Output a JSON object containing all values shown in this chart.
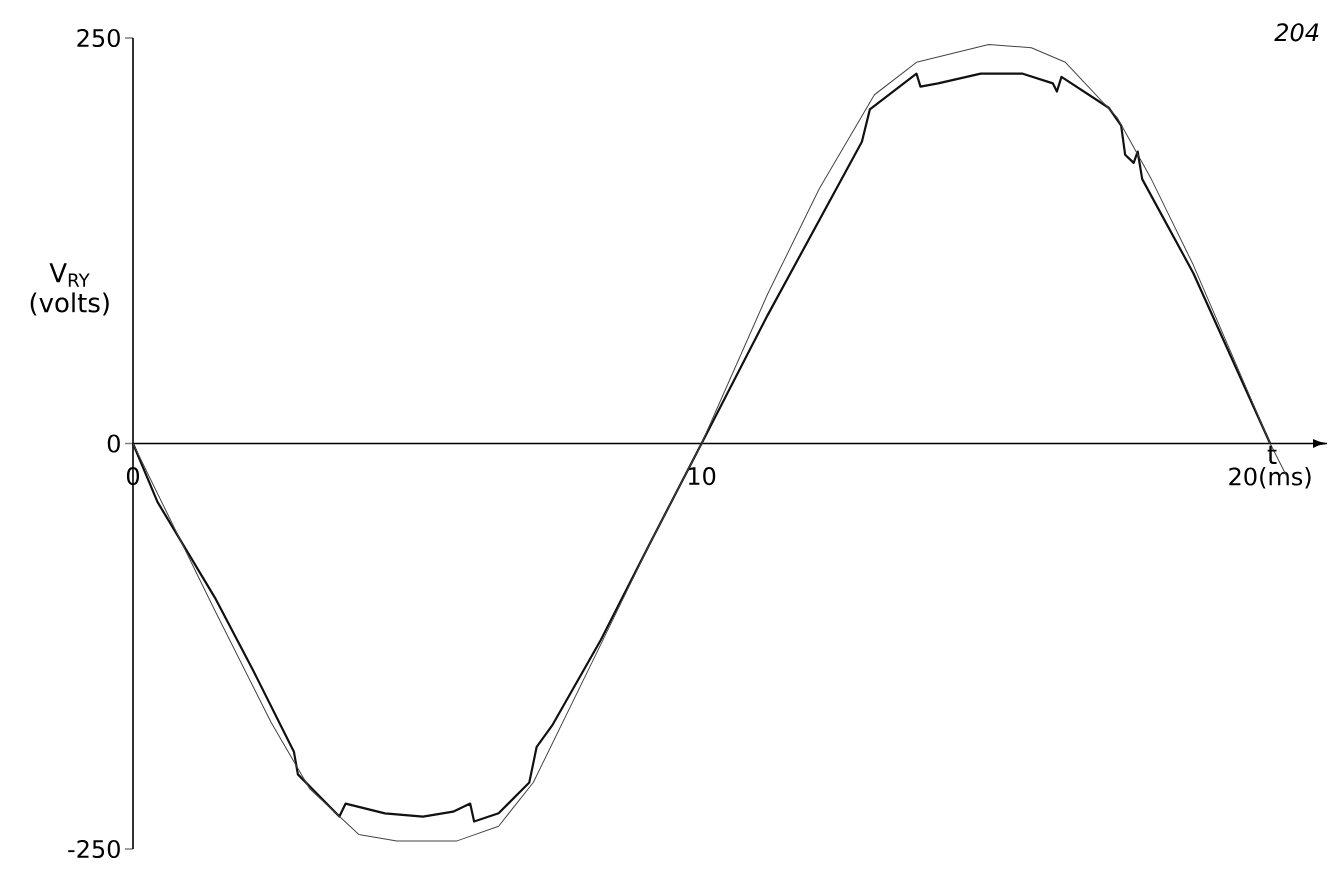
{
  "chart_data": {
    "type": "line",
    "xlabel": "t",
    "ylabel": "V$_{RY}$ (volts)",
    "annotations": [
      "204"
    ],
    "xlim": [
      0,
      21
    ],
    "ylim": [
      -250,
      250
    ],
    "xticks": [
      0,
      10,
      {
        "value": 20,
        "label": "20(ms)"
      }
    ],
    "yticks": [
      -250,
      0,
      250
    ],
    "series": [
      {
        "color": "#111111",
        "x": [
          0,
          0.43,
          1.44,
          2.1,
          2.83,
          2.9,
          3.63,
          3.74,
          4.43,
          5.1,
          5.63,
          5.93,
          6.0,
          6.43,
          6.97,
          7.1,
          7.37,
          8.23,
          9.1,
          10,
          11.16,
          12.82,
          12.96,
          13.78,
          13.85,
          14.16,
          14.91,
          15.65,
          16.18,
          16.25,
          16.33,
          17.16,
          17.38,
          17.45,
          17.6,
          17.67,
          17.75,
          18.65,
          20
        ],
        "values": [
          0,
          -36,
          -95,
          -139,
          -190,
          -204,
          -230,
          -222,
          -228,
          -230,
          -227,
          -222,
          -233,
          -228,
          -209,
          -187,
          -174,
          -121,
          -61,
          0,
          79,
          186,
          206,
          228,
          220,
          222,
          228,
          228,
          222,
          217,
          226,
          207,
          196,
          178,
          173,
          180,
          163,
          105,
          0
        ]
      },
      {
        "color": "#444444",
        "x": [
          0,
          1.44,
          2.43,
          3.11,
          3.97,
          4.64,
          5.7,
          6.43,
          7.04,
          8.17,
          9.1,
          10,
          11.16,
          12.07,
          13.04,
          13.78,
          15.05,
          15.8,
          16.4,
          17.31,
          17.91,
          18.65,
          20,
          20.29
        ],
        "values": [
          0,
          -103,
          -172,
          -213,
          -241,
          -245,
          -245,
          -236,
          -209,
          -128,
          -61,
          0,
          92,
          157,
          215,
          235,
          246,
          244,
          235,
          201,
          163,
          110,
          0,
          -20
        ]
      }
    ]
  }
}
